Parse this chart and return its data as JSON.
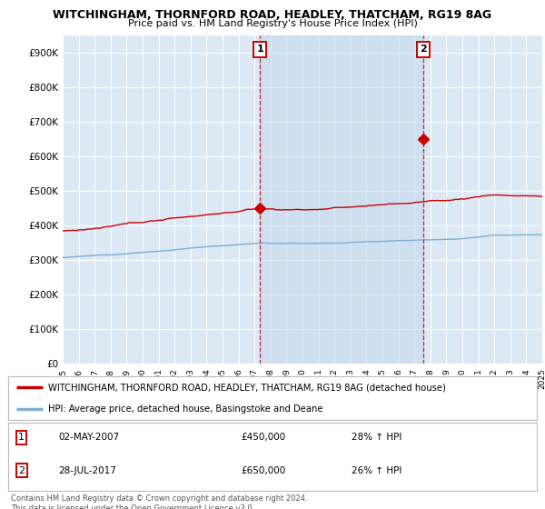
{
  "title": "WITCHINGHAM, THORNFORD ROAD, HEADLEY, THATCHAM, RG19 8AG",
  "subtitle": "Price paid vs. HM Land Registry's House Price Index (HPI)",
  "ylim": [
    0,
    950000
  ],
  "yticks": [
    0,
    100000,
    200000,
    300000,
    400000,
    500000,
    600000,
    700000,
    800000,
    900000
  ],
  "ytick_labels": [
    "£0",
    "£100K",
    "£200K",
    "£300K",
    "£400K",
    "£500K",
    "£600K",
    "£700K",
    "£800K",
    "£900K"
  ],
  "background_color": "#dce9f5",
  "shaded_color": "#c5d9ee",
  "grid_color": "#ffffff",
  "red_color": "#cc0000",
  "blue_color": "#7bafd4",
  "legend_label_red": "WITCHINGHAM, THORNFORD ROAD, HEADLEY, THATCHAM, RG19 8AG (detached house)",
  "legend_label_blue": "HPI: Average price, detached house, Basingstoke and Deane",
  "annotation1_date": "02-MAY-2007",
  "annotation1_price": "£450,000",
  "annotation1_pct": "28% ↑ HPI",
  "annotation2_date": "28-JUL-2017",
  "annotation2_price": "£650,000",
  "annotation2_pct": "26% ↑ HPI",
  "footer": "Contains HM Land Registry data © Crown copyright and database right 2024.\nThis data is licensed under the Open Government Licence v3.0.",
  "marker1_x": 2007.35,
  "marker1_y": 450000,
  "marker2_x": 2017.58,
  "marker2_y": 650000,
  "xmin": 1995,
  "xmax": 2025
}
